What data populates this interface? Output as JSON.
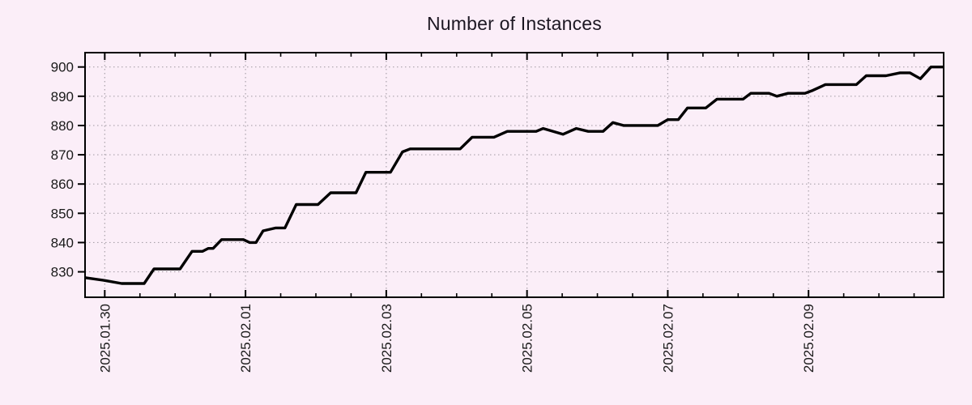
{
  "colors": {
    "background": "#fbeef8",
    "line": "#000000",
    "grid": "#aaa2ab",
    "axis": "#000000",
    "text": "#1a1a1a"
  },
  "chart_data": {
    "type": "line",
    "title": "Number of Instances",
    "grid": "dotted",
    "legend": "none",
    "x_axis": {
      "unit": "days since 2025-01-30 00:00",
      "range": [
        -0.28,
        11.92
      ],
      "major_tick_interval_days": 2,
      "minor_tick_interval_days": 0.5,
      "label_rotation_deg": -90,
      "major_ticks": [
        {
          "t": 0,
          "label": "2025.01.30"
        },
        {
          "t": 2,
          "label": "2025.02.01"
        },
        {
          "t": 4,
          "label": "2025.02.03"
        },
        {
          "t": 6,
          "label": "2025.02.05"
        },
        {
          "t": 8,
          "label": "2025.02.07"
        },
        {
          "t": 10,
          "label": "2025.02.09"
        }
      ]
    },
    "y_axis": {
      "range": [
        821.3,
        904.9
      ],
      "ticks": [
        830,
        840,
        850,
        860,
        870,
        880,
        890,
        900
      ]
    },
    "series": [
      {
        "name": "instances",
        "color": "#000000",
        "points": [
          [
            -0.28,
            828
          ],
          [
            0.01,
            827
          ],
          [
            0.24,
            826
          ],
          [
            0.56,
            826
          ],
          [
            0.7,
            831
          ],
          [
            1.07,
            831
          ],
          [
            1.24,
            837
          ],
          [
            1.39,
            837
          ],
          [
            1.47,
            838
          ],
          [
            1.54,
            838
          ],
          [
            1.66,
            841
          ],
          [
            1.97,
            841
          ],
          [
            2.06,
            840
          ],
          [
            2.15,
            840
          ],
          [
            2.25,
            844
          ],
          [
            2.43,
            845
          ],
          [
            2.56,
            845
          ],
          [
            2.72,
            853
          ],
          [
            3.03,
            853
          ],
          [
            3.21,
            857
          ],
          [
            3.57,
            857
          ],
          [
            3.71,
            864
          ],
          [
            4.06,
            864
          ],
          [
            4.23,
            871
          ],
          [
            4.34,
            872
          ],
          [
            5.05,
            872
          ],
          [
            5.22,
            876
          ],
          [
            5.53,
            876
          ],
          [
            5.72,
            878
          ],
          [
            6.13,
            878
          ],
          [
            6.23,
            879
          ],
          [
            6.51,
            877
          ],
          [
            6.7,
            879
          ],
          [
            6.87,
            878
          ],
          [
            7.08,
            878
          ],
          [
            7.22,
            881
          ],
          [
            7.37,
            880
          ],
          [
            7.86,
            880
          ],
          [
            8.0,
            882
          ],
          [
            8.15,
            882
          ],
          [
            8.28,
            886
          ],
          [
            8.54,
            886
          ],
          [
            8.7,
            889
          ],
          [
            9.07,
            889
          ],
          [
            9.18,
            891
          ],
          [
            9.44,
            891
          ],
          [
            9.55,
            890
          ],
          [
            9.71,
            891
          ],
          [
            9.95,
            891
          ],
          [
            10.06,
            892
          ],
          [
            10.24,
            894
          ],
          [
            10.68,
            894
          ],
          [
            10.82,
            897
          ],
          [
            11.1,
            897
          ],
          [
            11.3,
            898
          ],
          [
            11.44,
            898
          ],
          [
            11.59,
            896
          ],
          [
            11.74,
            900
          ],
          [
            11.91,
            900
          ]
        ]
      }
    ]
  }
}
